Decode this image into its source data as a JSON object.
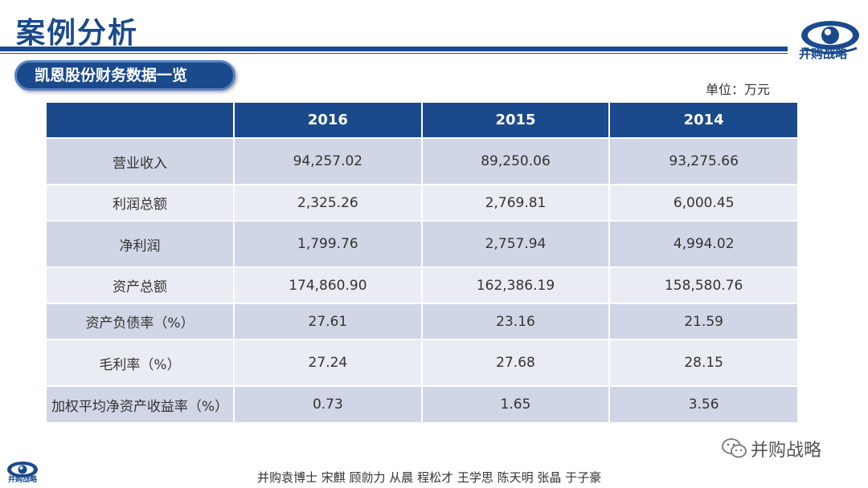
{
  "header": {
    "title": "案例分析",
    "logo_text": "并购战略",
    "subtitle": "凯恩股份财务数据一览",
    "unit": "单位：万元"
  },
  "table": {
    "columns": [
      "",
      "2016",
      "2015",
      "2014"
    ],
    "rows": [
      {
        "label": "营业收入",
        "values": [
          "94,257.02",
          "89,250.06",
          "93,275.66"
        ]
      },
      {
        "label": "利润总额",
        "values": [
          "2,325.26",
          "2,769.81",
          "6,000.45"
        ]
      },
      {
        "label": "净利润",
        "values": [
          "1,799.76",
          "2,757.94",
          "4,994.02"
        ]
      },
      {
        "label": "资产总额",
        "values": [
          "174,860.90",
          "162,386.19",
          "158,580.76"
        ]
      },
      {
        "label": "资产负债率（%）",
        "values": [
          "27.61",
          "23.16",
          "21.59"
        ]
      },
      {
        "label": "毛利率（%）",
        "values": [
          "27.24",
          "27.68",
          "28.15"
        ]
      },
      {
        "label": "加权平均净资产收益率（%）",
        "values": [
          "0.73",
          "1.65",
          "3.56"
        ]
      }
    ]
  },
  "watermark": {
    "text": "并购战略",
    "icon": "wechat-icon"
  },
  "footer": {
    "logo_text": "并购战略",
    "names": "并购袁博士 宋麒 顾勍力 从晨 程松才 王学思 陈天明 张晶 于子豪"
  },
  "colors": {
    "brand": "#1a4a8c",
    "row_dark": "#d0d6e6",
    "row_light": "#e9ecf3"
  }
}
